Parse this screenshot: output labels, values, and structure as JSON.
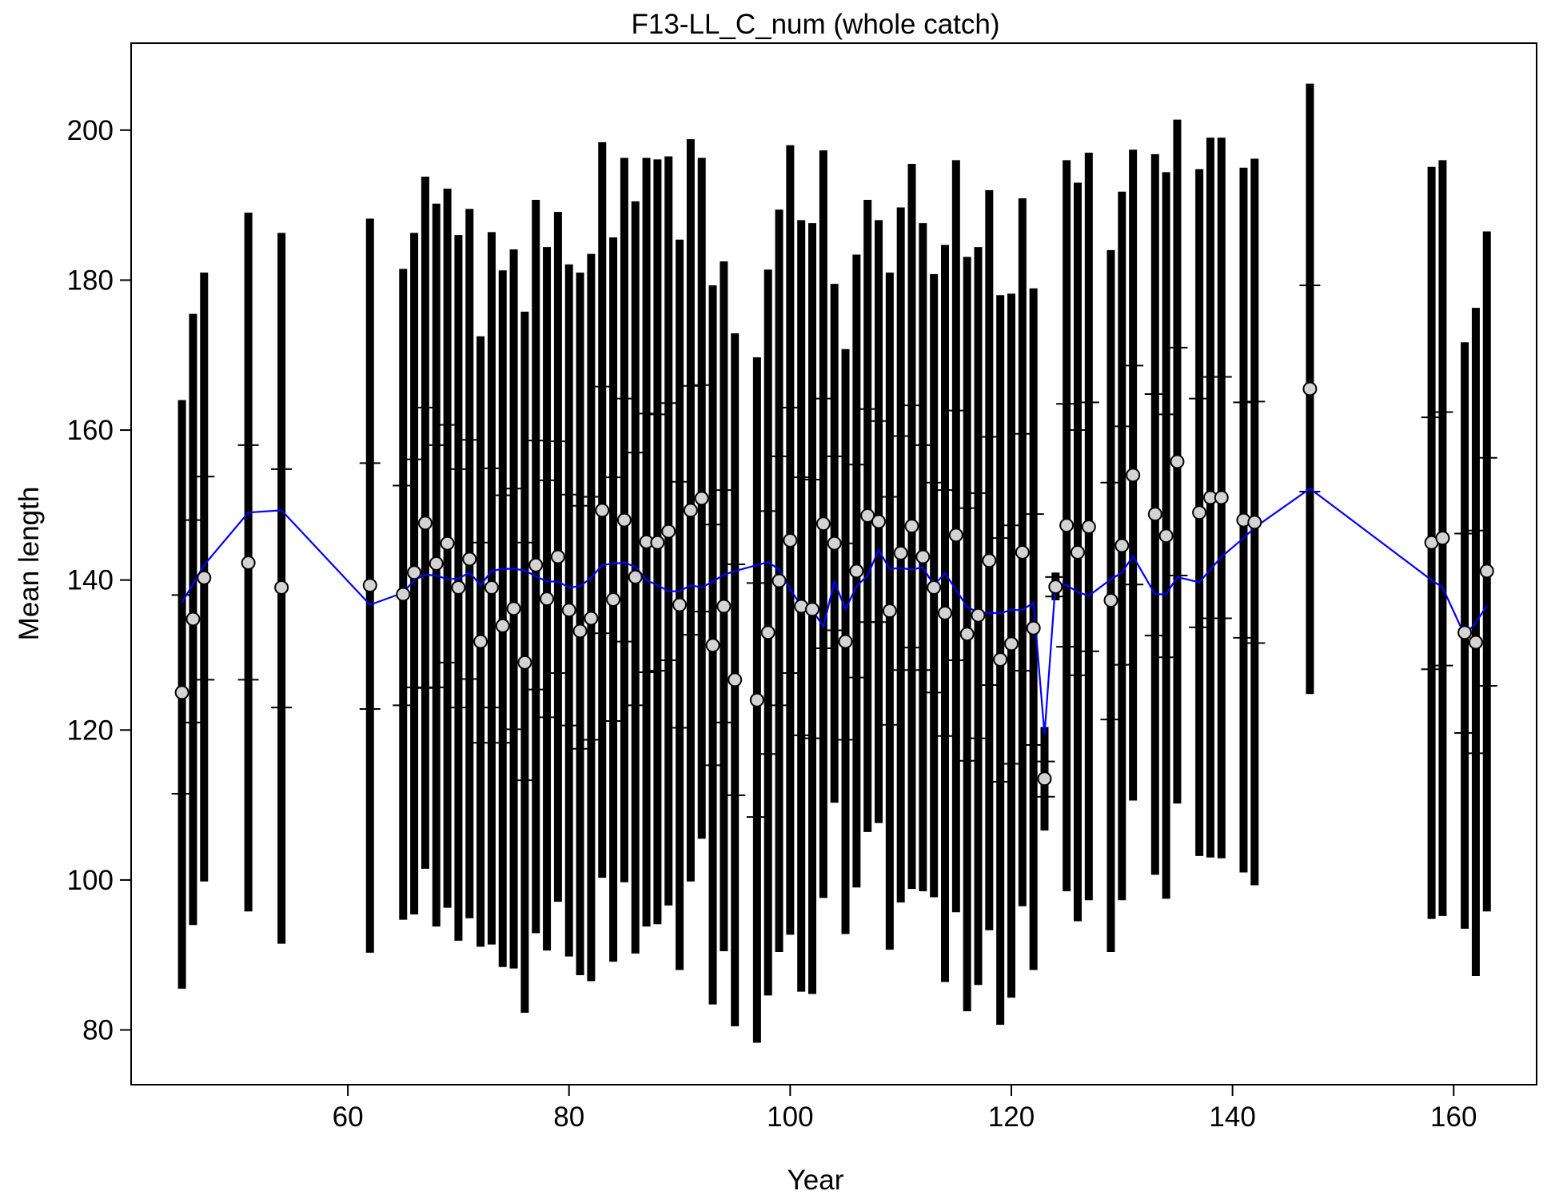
{
  "chart_data": {
    "type": "errorbar",
    "title": "F13-LL_C_num (whole catch)",
    "x_label": "Year",
    "y_label": "Mean length",
    "xlim": [
      40.4,
      167.5
    ],
    "ylim": [
      72.7,
      211.6
    ],
    "xticks": [
      60,
      80,
      100,
      120,
      140,
      160
    ],
    "yticks": [
      80,
      100,
      120,
      140,
      160,
      180,
      200
    ],
    "bar_color": "#000000",
    "point_color": "#d3d3d3",
    "line_color": "#0000ff",
    "x": [
      45,
      46,
      47,
      51,
      54,
      62,
      65,
      66,
      67,
      68,
      69,
      70,
      71,
      72,
      73,
      74,
      75,
      76,
      77,
      78,
      79,
      80,
      81,
      82,
      83,
      84,
      85,
      86,
      87,
      88,
      89,
      90,
      91,
      92,
      93,
      94,
      95,
      97,
      98,
      99,
      100,
      101,
      102,
      103,
      104,
      105,
      106,
      107,
      108,
      109,
      110,
      111,
      112,
      113,
      114,
      115,
      116,
      117,
      118,
      119,
      120,
      121,
      122,
      123,
      124,
      125,
      126,
      127,
      129,
      130,
      131,
      133,
      134,
      135,
      137,
      138,
      139,
      141,
      142,
      147,
      158,
      159,
      161,
      162,
      163
    ],
    "values": [
      125,
      134.8,
      140.3,
      142.3,
      139,
      139.3,
      138.1,
      141,
      147.6,
      142.2,
      144.9,
      139,
      142.8,
      131.8,
      139,
      133.9,
      136.2,
      129,
      142,
      137.5,
      143.1,
      136,
      133.2,
      134.9,
      149.3,
      137.4,
      148,
      140.4,
      145.1,
      145,
      146.5,
      136.7,
      149.3,
      150.9,
      131.3,
      136.5,
      126.7,
      124,
      133,
      139.9,
      145.3,
      136.5,
      136.1,
      147.5,
      144.9,
      131.8,
      141.2,
      148.6,
      147.8,
      135.9,
      143.6,
      147.2,
      143.1,
      139,
      135.6,
      146,
      132.8,
      135.3,
      142.6,
      129.4,
      131.5,
      143.7,
      133.6,
      113.5,
      139.1,
      147.3,
      143.7,
      147.1,
      137.3,
      144.6,
      154,
      148.8,
      145.9,
      155.8,
      149,
      151,
      151,
      148,
      147.7,
      165.5,
      145,
      145.6,
      133,
      131.7,
      141.2
    ],
    "expected": [
      137,
      139.5,
      142,
      149,
      149.3,
      136.7,
      138.3,
      140,
      140.7,
      140.6,
      140.1,
      140.2,
      141,
      139.3,
      141.2,
      141.5,
      141.5,
      141.3,
      140.5,
      139.8,
      139.8,
      139,
      139.2,
      140.3,
      142,
      142.2,
      142.3,
      141.8,
      140,
      139.3,
      138.5,
      138.5,
      139.3,
      139,
      139.8,
      140.7,
      141.2,
      142,
      142.4,
      141.4,
      138.8,
      136.5,
      136,
      133.8,
      139.8,
      136.1,
      139.2,
      140.6,
      144,
      141.5,
      141.6,
      141.4,
      141.7,
      139.3,
      140.9,
      138.7,
      136.4,
      135.7,
      135.6,
      135.6,
      136,
      136,
      137,
      119.4,
      139.6,
      139.3,
      138.4,
      137.9,
      140.1,
      141,
      143.2,
      138.1,
      138.1,
      140.4,
      139.7,
      141.4,
      143.1,
      145.6,
      147,
      152.2,
      140,
      139,
      132.6,
      134.3,
      136.6
    ],
    "upper": [
      164,
      175.5,
      181,
      189,
      186.3,
      188.2,
      181.5,
      186.3,
      193.8,
      190.2,
      192.2,
      186,
      189.5,
      172.5,
      186.4,
      181.3,
      184.1,
      175.8,
      190.7,
      184.4,
      189.1,
      182.1,
      181,
      183.5,
      198.4,
      185.7,
      196.3,
      190.5,
      196.3,
      196.1,
      196.5,
      185.4,
      198.8,
      196.3,
      179.3,
      182.5,
      172.9,
      169.7,
      181.4,
      189.4,
      198,
      188,
      187.6,
      197.3,
      179.5,
      170.8,
      183.4,
      190.7,
      188,
      181,
      189.7,
      195.5,
      187.6,
      180.8,
      184.7,
      196,
      183.1,
      184.4,
      192,
      178,
      178.2,
      190.9,
      178.9,
      120.4,
      141,
      196,
      193,
      197,
      184,
      191.8,
      197.4,
      196.8,
      194.4,
      201.4,
      194.8,
      199,
      199,
      195,
      196.2,
      206.2,
      195.1,
      196,
      171.7,
      176.3,
      186.5
    ],
    "lower": [
      85.5,
      94,
      99.8,
      95.8,
      91.5,
      90.3,
      94.7,
      95.4,
      101.5,
      93.8,
      96.3,
      91.9,
      94.9,
      91.1,
      91.4,
      88.4,
      88.2,
      82.3,
      92.9,
      90.6,
      97.1,
      89.8,
      87.3,
      86.5,
      100.3,
      89.1,
      99.7,
      90.2,
      93.8,
      94.1,
      96.6,
      88,
      99.8,
      105.5,
      83.4,
      90.5,
      80.5,
      78.3,
      84.6,
      90.4,
      92.7,
      85.1,
      84.8,
      97.6,
      110.3,
      92.8,
      99,
      106.4,
      107.6,
      90.7,
      97,
      98.8,
      98.5,
      97.7,
      86.4,
      95.7,
      82.5,
      86,
      93.3,
      80.7,
      84.3,
      96.5,
      88,
      106.6,
      137.3,
      98.5,
      94.5,
      97.3,
      90.4,
      97.3,
      110.6,
      100.7,
      97.5,
      110.2,
      103.2,
      103,
      102.9,
      101,
      99.3,
      124.8,
      94.8,
      95.2,
      93.5,
      87.2,
      95.8
    ],
    "inner_upper": [
      138,
      148,
      153.8,
      158,
      154.8,
      155.6,
      152.6,
      156.1,
      163,
      158,
      160.7,
      154.8,
      158.7,
      145,
      154.9,
      151.3,
      152.2,
      145,
      158.6,
      153.3,
      158.5,
      151.4,
      149.9,
      151.1,
      165.8,
      153.7,
      164.2,
      157,
      162.2,
      162.1,
      163.6,
      153.1,
      165.9,
      166,
      147.4,
      152,
      142.1,
      139.6,
      149.2,
      156.5,
      163,
      153.7,
      153.4,
      164.2,
      156.5,
      144.9,
      155.4,
      162.8,
      161.2,
      151.1,
      159.2,
      163.3,
      158,
      153,
      152,
      162.6,
      149.6,
      151.6,
      159.1,
      145.6,
      147.3,
      159.5,
      148.8,
      115.8,
      140.4,
      163.5,
      160,
      163.7,
      153,
      160.5,
      168.6,
      164.8,
      162.1,
      171,
      164.2,
      167.1,
      167.1,
      163.7,
      163.8,
      179.3,
      161.7,
      162.4,
      146.2,
      146.6,
      156.3
    ],
    "inner_lower": [
      111.5,
      121,
      126.7,
      126.7,
      123,
      122.8,
      123.3,
      125.7,
      125.6,
      125.7,
      129,
      123,
      126.8,
      118.3,
      123,
      118.3,
      120.1,
      113.3,
      125.4,
      121.7,
      127.6,
      120.6,
      117.5,
      118.7,
      132.9,
      121.2,
      131.8,
      123.3,
      127.7,
      127.9,
      129.3,
      120.3,
      132.7,
      135.8,
      115.3,
      121,
      111.3,
      108.4,
      116.8,
      123.3,
      127.6,
      119.3,
      118.9,
      130.9,
      133.3,
      118.7,
      127,
      134.4,
      134.4,
      120.7,
      128,
      131,
      128,
      125,
      119.2,
      129.3,
      115.9,
      118.9,
      126,
      113.1,
      115.5,
      127.9,
      118,
      111.1,
      137.8,
      131.1,
      127.3,
      130.5,
      121.4,
      128.7,
      139.4,
      132.6,
      129.7,
      140.6,
      133.7,
      134.9,
      134.9,
      132.3,
      131.6,
      151.8,
      128.1,
      128.6,
      119.6,
      116.9,
      125.9
    ]
  }
}
